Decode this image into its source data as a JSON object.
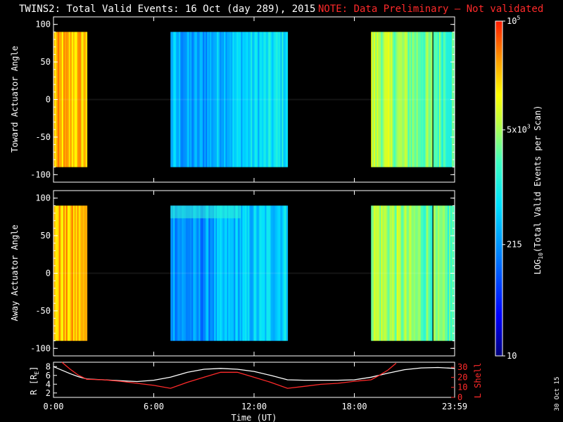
{
  "header": {
    "title": "TWINS2: Total Valid Events: 16 Oct (day 289), 2015",
    "note": "NOTE: Data Preliminary — Not validated"
  },
  "side_date": "30 Oct 15",
  "colors": {
    "background": "#000000",
    "axis": "#ffffff",
    "note": "#ff2a2a",
    "l_shell_line": "#ff2a2a",
    "r_line": "#ffffff"
  },
  "chart_data": [
    {
      "type": "heatmap",
      "id": "toward",
      "ylabel": "Toward Actuator Angle",
      "ylim": [
        -110,
        110
      ],
      "yticks": [
        100,
        50,
        0,
        -50,
        -100
      ],
      "data_y_range": [
        -90,
        90
      ],
      "xlim": [
        0,
        24
      ],
      "data_blocks": [
        {
          "start_hr": 0.0,
          "end_hr": 2.0,
          "log_level": 4.35
        },
        {
          "start_hr": 7.0,
          "end_hr": 14.0,
          "log_level": 2.6
        },
        {
          "start_hr": 19.0,
          "end_hr": 24.0,
          "log_level": 3.8
        }
      ]
    },
    {
      "type": "heatmap",
      "id": "away",
      "ylabel": "Away Actuator Angle",
      "ylim": [
        -110,
        110
      ],
      "yticks": [
        100,
        50,
        0,
        -50,
        -100
      ],
      "data_y_range": [
        -90,
        90
      ],
      "xlim": [
        0,
        24
      ],
      "data_blocks": [
        {
          "start_hr": 0.0,
          "end_hr": 2.0,
          "log_level": 4.35
        },
        {
          "start_hr": 7.0,
          "end_hr": 14.0,
          "log_level": 2.5
        },
        {
          "start_hr": 19.0,
          "end_hr": 24.0,
          "log_level": 3.8
        }
      ]
    },
    {
      "type": "line",
      "id": "orbit",
      "xlabel": "Time (UT)",
      "xticks": [
        "0:00",
        "6:00",
        "12:00",
        "18:00",
        "23:59"
      ],
      "xtick_hours": [
        0,
        6,
        12,
        18,
        24
      ],
      "ylabel_left": "R [R",
      "ylabel_left_sub": "E",
      "ylabel_left_close": "]",
      "ylim_left": [
        1,
        9
      ],
      "yticks_left": [
        8,
        6,
        4,
        2
      ],
      "ylabel_right": "L Shell",
      "ylim_right": [
        0,
        35
      ],
      "yticks_right": [
        30,
        20,
        10,
        0
      ],
      "series": [
        {
          "name": "R",
          "axis": "left",
          "x": [
            0,
            0.5,
            1.0,
            1.5,
            2.0,
            3.0,
            4.0,
            5.0,
            6.0,
            7.0,
            8.0,
            9.0,
            10.0,
            11.0,
            12.0,
            13.0,
            14.0,
            15.0,
            16.0,
            17.0,
            18.0,
            19.0,
            20.0,
            21.0,
            22.0,
            23.0,
            24.0
          ],
          "y": [
            8.0,
            7.2,
            6.4,
            5.7,
            5.2,
            5.0,
            4.8,
            4.6,
            4.9,
            5.6,
            6.7,
            7.4,
            7.6,
            7.4,
            6.9,
            6.0,
            5.0,
            4.9,
            4.9,
            4.9,
            5.0,
            5.6,
            6.5,
            7.3,
            7.7,
            7.8,
            7.6
          ]
        },
        {
          "name": "L Shell",
          "axis": "right",
          "x": [
            0.5,
            1.0,
            1.5,
            2.0,
            3.0,
            4.0,
            5.0,
            6.0,
            7.0,
            8.0,
            9.0,
            10.0,
            11.0,
            12.0,
            13.0,
            14.0,
            15.0,
            16.0,
            17.0,
            18.0,
            19.0,
            19.5,
            20.0,
            20.5
          ],
          "y": [
            35,
            28,
            22,
            18,
            17.5,
            16,
            14,
            12,
            9,
            15,
            20,
            25,
            25,
            20,
            15,
            9,
            11,
            13,
            14,
            16,
            17.5,
            22,
            27,
            34
          ]
        }
      ]
    }
  ],
  "colorbar": {
    "label_prefix": "LOG",
    "label_sub": "10",
    "label_suffix": "(Total Valid Events per Scan)",
    "ticks": [
      {
        "label": "10",
        "log": 1.0
      },
      {
        "label": "215",
        "log": 2.33
      },
      {
        "label": "5x10",
        "sup": "3",
        "log": 3.7
      },
      {
        "label": "10",
        "sup": "5",
        "log": 5.0
      }
    ],
    "log_range": [
      1.0,
      5.0
    ]
  }
}
